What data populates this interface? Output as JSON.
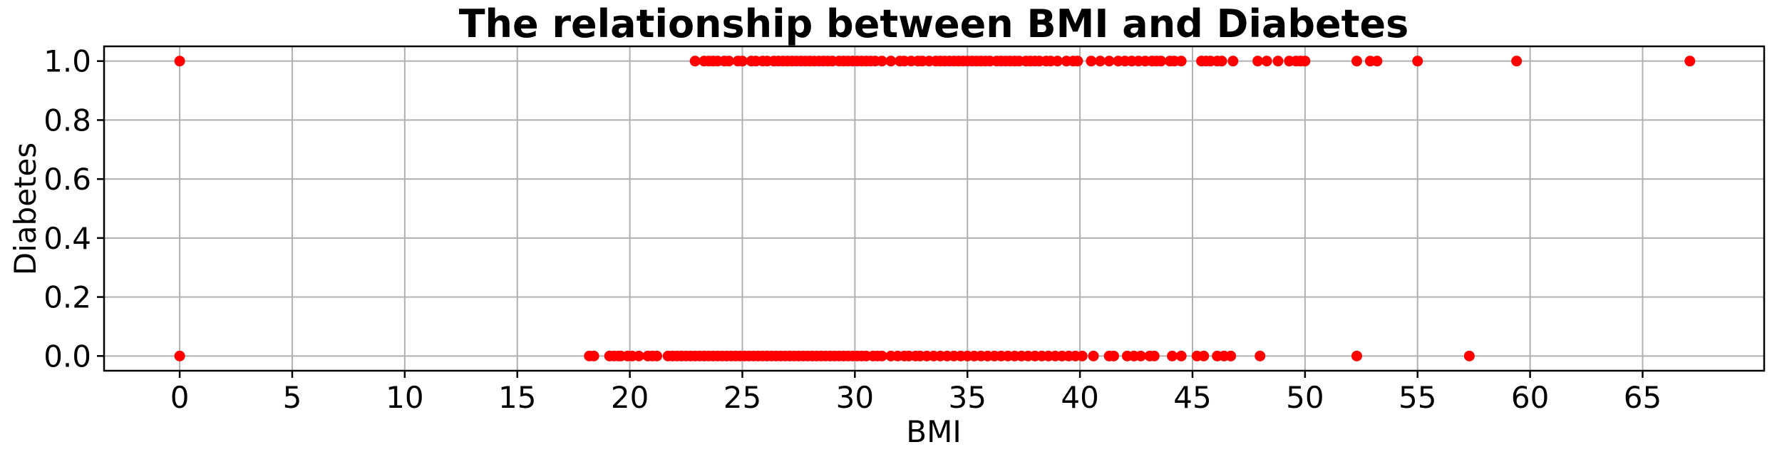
{
  "chart_data": {
    "type": "scatter",
    "title": "The relationship between BMI and Diabetes",
    "xlabel": "BMI",
    "ylabel": "Diabetes",
    "xlim": [
      -3.36,
      70.4
    ],
    "ylim": [
      -0.05,
      1.05
    ],
    "xticks": [
      0,
      5,
      10,
      15,
      20,
      25,
      30,
      35,
      40,
      45,
      50,
      55,
      60,
      65
    ],
    "xtick_labels": [
      "0",
      "5",
      "10",
      "15",
      "20",
      "25",
      "30",
      "35",
      "40",
      "45",
      "50",
      "55",
      "60",
      "65"
    ],
    "yticks": [
      0.0,
      0.2,
      0.4,
      0.6,
      0.8,
      1.0
    ],
    "ytick_labels": [
      "0.0",
      "0.2",
      "0.4",
      "0.6",
      "0.8",
      "1.0"
    ],
    "grid": true,
    "marker_color": "#ff0000",
    "series": [
      {
        "name": "",
        "points": [
          [
            0.0,
            1
          ],
          [
            22.9,
            1
          ],
          [
            23.3,
            1
          ],
          [
            23.5,
            1
          ],
          [
            23.7,
            1
          ],
          [
            23.9,
            1
          ],
          [
            24.2,
            1
          ],
          [
            24.4,
            1
          ],
          [
            24.8,
            1
          ],
          [
            25.0,
            1
          ],
          [
            25.4,
            1
          ],
          [
            25.6,
            1
          ],
          [
            25.9,
            1
          ],
          [
            26.1,
            1
          ],
          [
            26.4,
            1
          ],
          [
            26.6,
            1
          ],
          [
            26.8,
            1
          ],
          [
            27.0,
            1
          ],
          [
            27.2,
            1
          ],
          [
            27.4,
            1
          ],
          [
            27.6,
            1
          ],
          [
            27.8,
            1
          ],
          [
            28.0,
            1
          ],
          [
            28.2,
            1
          ],
          [
            28.4,
            1
          ],
          [
            28.6,
            1
          ],
          [
            28.8,
            1
          ],
          [
            29.0,
            1
          ],
          [
            29.3,
            1
          ],
          [
            29.5,
            1
          ],
          [
            29.7,
            1
          ],
          [
            29.9,
            1
          ],
          [
            30.1,
            1
          ],
          [
            30.3,
            1
          ],
          [
            30.5,
            1
          ],
          [
            30.7,
            1
          ],
          [
            30.9,
            1
          ],
          [
            31.2,
            1
          ],
          [
            31.6,
            1
          ],
          [
            32.0,
            1
          ],
          [
            32.2,
            1
          ],
          [
            32.5,
            1
          ],
          [
            32.8,
            1
          ],
          [
            33.0,
            1
          ],
          [
            33.3,
            1
          ],
          [
            33.6,
            1
          ],
          [
            33.8,
            1
          ],
          [
            34.0,
            1
          ],
          [
            34.2,
            1
          ],
          [
            34.4,
            1
          ],
          [
            34.6,
            1
          ],
          [
            34.8,
            1
          ],
          [
            35.0,
            1
          ],
          [
            35.2,
            1
          ],
          [
            35.4,
            1
          ],
          [
            35.6,
            1
          ],
          [
            35.8,
            1
          ],
          [
            36.0,
            1
          ],
          [
            36.3,
            1
          ],
          [
            36.5,
            1
          ],
          [
            36.7,
            1
          ],
          [
            36.9,
            1
          ],
          [
            37.1,
            1
          ],
          [
            37.3,
            1
          ],
          [
            37.6,
            1
          ],
          [
            37.8,
            1
          ],
          [
            38.0,
            1
          ],
          [
            38.2,
            1
          ],
          [
            38.5,
            1
          ],
          [
            38.7,
            1
          ],
          [
            39.0,
            1
          ],
          [
            39.4,
            1
          ],
          [
            39.7,
            1
          ],
          [
            39.9,
            1
          ],
          [
            40.5,
            1
          ],
          [
            40.9,
            1
          ],
          [
            41.3,
            1
          ],
          [
            41.7,
            1
          ],
          [
            42.0,
            1
          ],
          [
            42.3,
            1
          ],
          [
            42.6,
            1
          ],
          [
            42.9,
            1
          ],
          [
            43.2,
            1
          ],
          [
            43.4,
            1
          ],
          [
            43.6,
            1
          ],
          [
            44.0,
            1
          ],
          [
            44.2,
            1
          ],
          [
            44.5,
            1
          ],
          [
            45.4,
            1
          ],
          [
            45.6,
            1
          ],
          [
            45.8,
            1
          ],
          [
            46.1,
            1
          ],
          [
            46.3,
            1
          ],
          [
            46.8,
            1
          ],
          [
            47.9,
            1
          ],
          [
            48.3,
            1
          ],
          [
            48.8,
            1
          ],
          [
            49.3,
            1
          ],
          [
            49.6,
            1
          ],
          [
            49.8,
            1
          ],
          [
            50.0,
            1
          ],
          [
            52.3,
            1
          ],
          [
            52.9,
            1
          ],
          [
            53.2,
            1
          ],
          [
            55.0,
            1
          ],
          [
            59.4,
            1
          ],
          [
            67.1,
            1
          ],
          [
            0.0,
            0
          ],
          [
            18.2,
            0
          ],
          [
            18.4,
            0
          ],
          [
            19.1,
            0
          ],
          [
            19.3,
            0
          ],
          [
            19.5,
            0
          ],
          [
            19.6,
            0
          ],
          [
            19.9,
            0
          ],
          [
            20.1,
            0
          ],
          [
            20.4,
            0
          ],
          [
            20.8,
            0
          ],
          [
            21.0,
            0
          ],
          [
            21.2,
            0
          ],
          [
            21.7,
            0
          ],
          [
            21.9,
            0
          ],
          [
            22.1,
            0
          ],
          [
            22.3,
            0
          ],
          [
            22.5,
            0
          ],
          [
            22.7,
            0
          ],
          [
            22.9,
            0
          ],
          [
            23.1,
            0
          ],
          [
            23.3,
            0
          ],
          [
            23.5,
            0
          ],
          [
            23.7,
            0
          ],
          [
            23.9,
            0
          ],
          [
            24.1,
            0
          ],
          [
            24.3,
            0
          ],
          [
            24.5,
            0
          ],
          [
            24.7,
            0
          ],
          [
            24.9,
            0
          ],
          [
            25.1,
            0
          ],
          [
            25.3,
            0
          ],
          [
            25.5,
            0
          ],
          [
            25.7,
            0
          ],
          [
            25.9,
            0
          ],
          [
            26.1,
            0
          ],
          [
            26.3,
            0
          ],
          [
            26.5,
            0
          ],
          [
            26.7,
            0
          ],
          [
            26.9,
            0
          ],
          [
            27.1,
            0
          ],
          [
            27.3,
            0
          ],
          [
            27.5,
            0
          ],
          [
            27.7,
            0
          ],
          [
            27.9,
            0
          ],
          [
            28.1,
            0
          ],
          [
            28.3,
            0
          ],
          [
            28.5,
            0
          ],
          [
            28.7,
            0
          ],
          [
            28.9,
            0
          ],
          [
            29.1,
            0
          ],
          [
            29.3,
            0
          ],
          [
            29.5,
            0
          ],
          [
            29.7,
            0
          ],
          [
            29.9,
            0
          ],
          [
            30.1,
            0
          ],
          [
            30.3,
            0
          ],
          [
            30.5,
            0
          ],
          [
            30.8,
            0
          ],
          [
            31.0,
            0
          ],
          [
            31.2,
            0
          ],
          [
            31.6,
            0
          ],
          [
            31.9,
            0
          ],
          [
            32.2,
            0
          ],
          [
            32.4,
            0
          ],
          [
            32.7,
            0
          ],
          [
            32.9,
            0
          ],
          [
            33.2,
            0
          ],
          [
            33.5,
            0
          ],
          [
            33.8,
            0
          ],
          [
            34.1,
            0
          ],
          [
            34.4,
            0
          ],
          [
            34.7,
            0
          ],
          [
            35.0,
            0
          ],
          [
            35.3,
            0
          ],
          [
            35.6,
            0
          ],
          [
            35.9,
            0
          ],
          [
            36.2,
            0
          ],
          [
            36.5,
            0
          ],
          [
            36.8,
            0
          ],
          [
            37.1,
            0
          ],
          [
            37.4,
            0
          ],
          [
            37.7,
            0
          ],
          [
            38.0,
            0
          ],
          [
            38.3,
            0
          ],
          [
            38.6,
            0
          ],
          [
            38.9,
            0
          ],
          [
            39.2,
            0
          ],
          [
            39.5,
            0
          ],
          [
            39.8,
            0
          ],
          [
            40.1,
            0
          ],
          [
            40.6,
            0
          ],
          [
            41.3,
            0
          ],
          [
            41.5,
            0
          ],
          [
            42.1,
            0
          ],
          [
            42.4,
            0
          ],
          [
            42.7,
            0
          ],
          [
            43.1,
            0
          ],
          [
            43.3,
            0
          ],
          [
            44.1,
            0
          ],
          [
            44.5,
            0
          ],
          [
            45.2,
            0
          ],
          [
            45.5,
            0
          ],
          [
            46.1,
            0
          ],
          [
            46.4,
            0
          ],
          [
            46.7,
            0
          ],
          [
            48.0,
            0
          ],
          [
            52.3,
            0
          ],
          [
            57.3,
            0
          ]
        ]
      }
    ]
  }
}
